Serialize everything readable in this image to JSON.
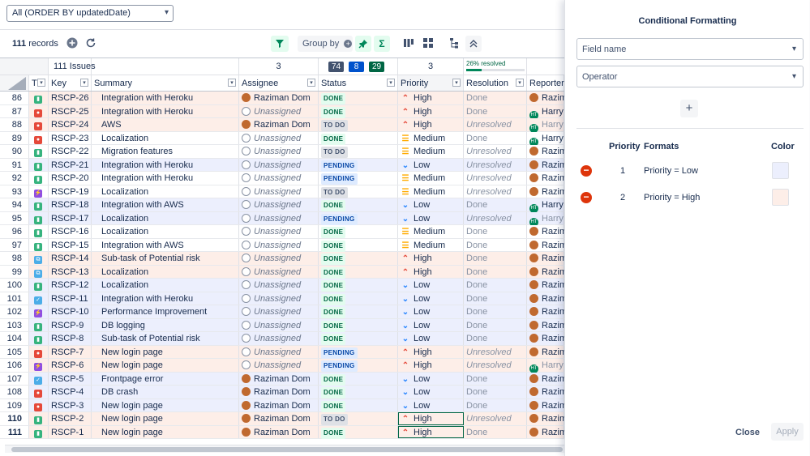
{
  "filter": {
    "value": "All (ORDER BY updatedDate)"
  },
  "toolbar": {
    "records_count": "111",
    "records_label": "records",
    "group_by_label": "Group by"
  },
  "summary": {
    "issues": "111 Issues",
    "assignee_count": "3",
    "status_counts": [
      {
        "value": "74",
        "color": "#42526e"
      },
      {
        "value": "8",
        "color": "#0052cc"
      },
      {
        "value": "29",
        "color": "#006644"
      }
    ],
    "priority_count": "3",
    "resolved_label": "26% resolved",
    "resolved_fraction": 0.26
  },
  "columns": [
    {
      "key": "num",
      "label": ""
    },
    {
      "key": "type",
      "label": "T"
    },
    {
      "key": "key",
      "label": "Key"
    },
    {
      "key": "summary",
      "label": "Summary"
    },
    {
      "key": "assignee",
      "label": "Assignee"
    },
    {
      "key": "status",
      "label": "Status"
    },
    {
      "key": "priority",
      "label": "Priority"
    },
    {
      "key": "resolution",
      "label": "Resolution"
    },
    {
      "key": "reporter",
      "label": "Reporter"
    }
  ],
  "rows": [
    {
      "num": "86",
      "type": "story",
      "key": "RSCP-26",
      "summary": "Integration with Heroku",
      "assignee": "Raziman Dom",
      "av": "rd",
      "status": "DONE",
      "priority": "High",
      "resolution": "Done",
      "reporter": "Razim",
      "rav": "rd"
    },
    {
      "num": "87",
      "type": "bug",
      "key": "RSCP-25",
      "summary": "Integration with Heroku",
      "assignee": "Unassigned",
      "av": "un",
      "status": "DONE",
      "priority": "High",
      "resolution": "Done",
      "reporter": "Harry",
      "rav": "ht"
    },
    {
      "num": "88",
      "type": "bug",
      "key": "RSCP-24",
      "summary": "AWS",
      "assignee": "Raziman Dom",
      "av": "rd",
      "status": "TO DO",
      "priority": "High",
      "resolution": "Unresolved",
      "reporter": "Harry",
      "rav": "ht"
    },
    {
      "num": "89",
      "type": "bug",
      "key": "RSCP-23",
      "summary": "Localization",
      "assignee": "Unassigned",
      "av": "un",
      "status": "DONE",
      "priority": "Medium",
      "resolution": "Done",
      "reporter": "Harry",
      "rav": "ht"
    },
    {
      "num": "90",
      "type": "story",
      "key": "RSCP-22",
      "summary": "Migration features",
      "assignee": "Unassigned",
      "av": "un",
      "status": "TO DO",
      "priority": "Medium",
      "resolution": "Unresolved",
      "reporter": "Razim",
      "rav": "rd"
    },
    {
      "num": "91",
      "type": "story",
      "key": "RSCP-21",
      "summary": "Integration with Heroku",
      "assignee": "Unassigned",
      "av": "un",
      "status": "PENDING",
      "priority": "Low",
      "resolution": "Unresolved",
      "reporter": "Razim",
      "rav": "rd"
    },
    {
      "num": "92",
      "type": "story",
      "key": "RSCP-20",
      "summary": "Integration with Heroku",
      "assignee": "Unassigned",
      "av": "un",
      "status": "PENDING",
      "priority": "Medium",
      "resolution": "Unresolved",
      "reporter": "Razim",
      "rav": "rd"
    },
    {
      "num": "93",
      "type": "epic",
      "key": "RSCP-19",
      "summary": "Localization",
      "assignee": "Unassigned",
      "av": "un",
      "status": "TO DO",
      "priority": "Medium",
      "resolution": "Unresolved",
      "reporter": "Razim",
      "rav": "rd"
    },
    {
      "num": "94",
      "type": "story",
      "key": "RSCP-18",
      "summary": "Integration with AWS",
      "assignee": "Unassigned",
      "av": "un",
      "status": "DONE",
      "priority": "Low",
      "resolution": "Done",
      "reporter": "Harry",
      "rav": "ht"
    },
    {
      "num": "95",
      "type": "story",
      "key": "RSCP-17",
      "summary": "Localization",
      "assignee": "Unassigned",
      "av": "un",
      "status": "PENDING",
      "priority": "Low",
      "resolution": "Unresolved",
      "reporter": "Harry",
      "rav": "ht"
    },
    {
      "num": "96",
      "type": "story",
      "key": "RSCP-16",
      "summary": "Localization",
      "assignee": "Unassigned",
      "av": "un",
      "status": "DONE",
      "priority": "Medium",
      "resolution": "Done",
      "reporter": "Razim",
      "rav": "rd"
    },
    {
      "num": "97",
      "type": "story",
      "key": "RSCP-15",
      "summary": "Integration with AWS",
      "assignee": "Unassigned",
      "av": "un",
      "status": "DONE",
      "priority": "Medium",
      "resolution": "Done",
      "reporter": "Razim",
      "rav": "rd"
    },
    {
      "num": "98",
      "type": "sub",
      "key": "RSCP-14",
      "summary": "Sub-task of Potential risk",
      "assignee": "Unassigned",
      "av": "un",
      "status": "DONE",
      "priority": "High",
      "resolution": "Done",
      "reporter": "Razim",
      "rav": "rd"
    },
    {
      "num": "99",
      "type": "sub",
      "key": "RSCP-13",
      "summary": "Localization",
      "assignee": "Unassigned",
      "av": "un",
      "status": "DONE",
      "priority": "High",
      "resolution": "Done",
      "reporter": "Razim",
      "rav": "rd"
    },
    {
      "num": "100",
      "type": "story",
      "key": "RSCP-12",
      "summary": "Localization",
      "assignee": "Unassigned",
      "av": "un",
      "status": "DONE",
      "priority": "Low",
      "resolution": "Done",
      "reporter": "Razim",
      "rav": "rd"
    },
    {
      "num": "101",
      "type": "task",
      "key": "RSCP-11",
      "summary": "Integration with Heroku",
      "assignee": "Unassigned",
      "av": "un",
      "status": "DONE",
      "priority": "Low",
      "resolution": "Done",
      "reporter": "Razim",
      "rav": "rd"
    },
    {
      "num": "102",
      "type": "epic",
      "key": "RSCP-10",
      "summary": "Performance Improvement",
      "assignee": "Unassigned",
      "av": "un",
      "status": "DONE",
      "priority": "Low",
      "resolution": "Done",
      "reporter": "Razim",
      "rav": "rd"
    },
    {
      "num": "103",
      "type": "story",
      "key": "RSCP-9",
      "summary": "DB logging",
      "assignee": "Unassigned",
      "av": "un",
      "status": "DONE",
      "priority": "Low",
      "resolution": "Done",
      "reporter": "Razim",
      "rav": "rd"
    },
    {
      "num": "104",
      "type": "story",
      "key": "RSCP-8",
      "summary": "Sub-task of Potential risk",
      "assignee": "Unassigned",
      "av": "un",
      "status": "DONE",
      "priority": "Low",
      "resolution": "Done",
      "reporter": "Razim",
      "rav": "rd"
    },
    {
      "num": "105",
      "type": "bug",
      "key": "RSCP-7",
      "summary": "New login page",
      "assignee": "Unassigned",
      "av": "un",
      "status": "PENDING",
      "priority": "High",
      "resolution": "Unresolved",
      "reporter": "Razim",
      "rav": "rd"
    },
    {
      "num": "106",
      "type": "epic",
      "key": "RSCP-6",
      "summary": "New login page",
      "assignee": "Unassigned",
      "av": "un",
      "status": "PENDING",
      "priority": "High",
      "resolution": "Unresolved",
      "reporter": "Harry",
      "rav": "ht"
    },
    {
      "num": "107",
      "type": "task",
      "key": "RSCP-5",
      "summary": "Frontpage error",
      "assignee": "Raziman Dom",
      "av": "rd",
      "status": "DONE",
      "priority": "Low",
      "resolution": "Done",
      "reporter": "Razim",
      "rav": "rd"
    },
    {
      "num": "108",
      "type": "bug",
      "key": "RSCP-4",
      "summary": "DB crash",
      "assignee": "Raziman Dom",
      "av": "rd",
      "status": "DONE",
      "priority": "Low",
      "resolution": "Done",
      "reporter": "Razim",
      "rav": "rd"
    },
    {
      "num": "109",
      "type": "bug",
      "key": "RSCP-3",
      "summary": "New login page",
      "assignee": "Raziman Dom",
      "av": "rd",
      "status": "DONE",
      "priority": "Low",
      "resolution": "Done",
      "reporter": "Razim",
      "rav": "rd"
    },
    {
      "num": "110",
      "type": "story",
      "key": "RSCP-2",
      "summary": "New login page",
      "assignee": "Raziman Dom",
      "av": "rd",
      "status": "TO DO",
      "priority": "High",
      "resolution": "Unresolved",
      "reporter": "Razim",
      "rav": "rd"
    },
    {
      "num": "111",
      "type": "story",
      "key": "RSCP-1",
      "summary": "New login page",
      "assignee": "Raziman Dom",
      "av": "rd",
      "status": "DONE",
      "priority": "High",
      "resolution": "Done",
      "reporter": "Razim",
      "rav": "rd"
    }
  ],
  "panel": {
    "title": "Conditional Formatting",
    "field_placeholder": "Field name",
    "operator_placeholder": "Operator",
    "headers": {
      "priority": "Priority",
      "formats": "Formats",
      "color": "Color"
    },
    "formats": [
      {
        "priority": "1",
        "format": "Priority = Low",
        "color": "#eceffd"
      },
      {
        "priority": "2",
        "format": "Priority = High",
        "color": "#fdeee8"
      }
    ],
    "close_label": "Close",
    "apply_label": "Apply"
  },
  "colors": {
    "low_row": "#eceffd",
    "high_row": "#fdeee8",
    "accent_green": "#36b37e"
  }
}
